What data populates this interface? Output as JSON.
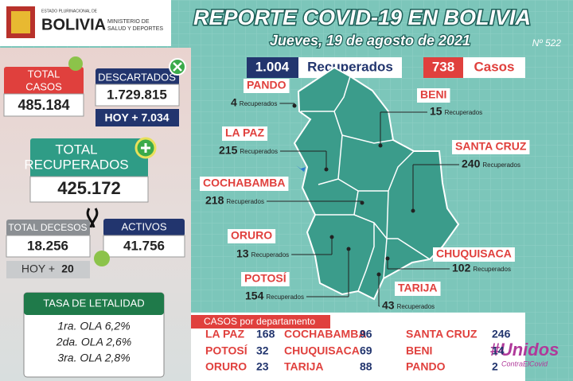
{
  "header": {
    "org": "ESTADO PLURINACIONAL DE",
    "country": "BOLIVIA",
    "ministry_1": "MINISTERIO DE",
    "ministry_2": "SALUD Y DEPORTES",
    "title": "REPORTE COVID-19 EN BOLIVIA",
    "date": "Jueves, 19 de agosto de 2021",
    "report_number": "Nº 522"
  },
  "summary": {
    "total_cases": {
      "label_1": "TOTAL",
      "label_2": "CASOS",
      "value": "485.184"
    },
    "discarded": {
      "label": "DESCARTADOS",
      "value": "1.729.815",
      "today": "HOY + 7.034"
    },
    "total_recovered": {
      "label_1": "TOTAL",
      "label_2": "RECUPERADOS",
      "value": "425.172"
    },
    "total_deaths": {
      "label": "TOTAL DECESOS",
      "value": "18.256",
      "today_label": "HOY +",
      "today_value": "20"
    },
    "active": {
      "label": "ACTIVOS",
      "value": "41.756"
    },
    "fatality": {
      "title": "TASA DE LETALIDAD",
      "rows": [
        "1ra. OLA 6,2%",
        "2da. OLA 2,6%",
        "3ra. OLA 2,8%"
      ]
    }
  },
  "map": {
    "recovered_total": "1.004",
    "recovered_label": "Recuperados",
    "cases_total": "738",
    "cases_label": "Casos",
    "unit": "Recuperados",
    "departments": [
      {
        "name": "PANDO",
        "value": "4"
      },
      {
        "name": "BENI",
        "value": "15"
      },
      {
        "name": "LA PAZ",
        "value": "215"
      },
      {
        "name": "SANTA CRUZ",
        "value": "240"
      },
      {
        "name": "COCHABAMBA",
        "value": "218"
      },
      {
        "name": "ORURO",
        "value": "13"
      },
      {
        "name": "CHUQUISACA",
        "value": "102"
      },
      {
        "name": "POTOSÍ",
        "value": "154"
      },
      {
        "name": "TARIJA",
        "value": "43"
      }
    ]
  },
  "cases_by_department": {
    "title": "CASOS por departamento",
    "items": [
      {
        "name": "LA PAZ",
        "value": "168"
      },
      {
        "name": "COCHABAMBA",
        "value": "96"
      },
      {
        "name": "SANTA CRUZ",
        "value": "246"
      },
      {
        "name": "POTOSÍ",
        "value": "32"
      },
      {
        "name": "CHUQUISACA",
        "value": "69"
      },
      {
        "name": "BENI",
        "value": "14"
      },
      {
        "name": "ORURO",
        "value": "23"
      },
      {
        "name": "TARIJA",
        "value": "88"
      },
      {
        "name": "PANDO",
        "value": "2"
      }
    ]
  },
  "campaign": {
    "hashtag": "#Unidos",
    "slogan": "ContraElCovid"
  }
}
